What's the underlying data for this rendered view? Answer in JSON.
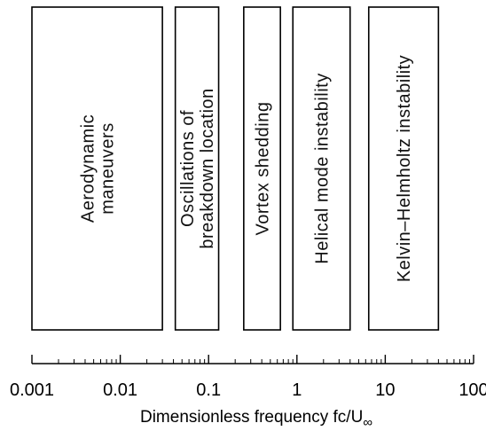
{
  "chart_data": {
    "type": "range-diagram",
    "x_scale": "log",
    "xlim": [
      0.001,
      100
    ],
    "bands": [
      {
        "lines": [
          "Aerodynamic",
          "maneuvers"
        ],
        "x_range": [
          0.001,
          0.03
        ]
      },
      {
        "lines": [
          "Oscillations of",
          "breakdown location"
        ],
        "x_range": [
          0.042,
          0.13
        ]
      },
      {
        "lines": [
          "Vortex shedding"
        ],
        "x_range": [
          0.25,
          0.65
        ]
      },
      {
        "lines": [
          "Helical mode instability"
        ],
        "x_range": [
          0.9,
          4.0
        ]
      },
      {
        "lines": [
          "Kelvin–Helmholtz instability"
        ],
        "x_range": [
          6.5,
          40
        ]
      }
    ],
    "ticks": [
      {
        "value": 0.001,
        "label": "0.001"
      },
      {
        "value": 0.01,
        "label": "0.01"
      },
      {
        "value": 0.1,
        "label": "0.1"
      },
      {
        "value": 1,
        "label": "1"
      },
      {
        "value": 10,
        "label": "10"
      },
      {
        "value": 100,
        "label": "100"
      }
    ],
    "xlabel": {
      "main": "Dimensionless frequency fc/U",
      "subscript": "∞"
    }
  }
}
